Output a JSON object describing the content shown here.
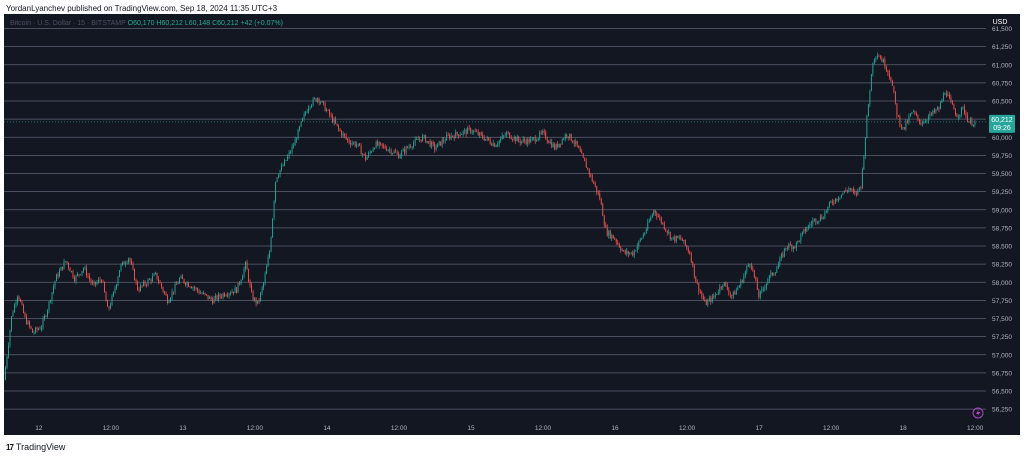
{
  "header": {
    "published_text": "YordanLyanchev published on TradingView.com, Sep 18, 2024 11:35 UTC+3"
  },
  "symbol": {
    "name": "Bitcoin · U.S. Dollar · 15 · BITSTAMP",
    "ohlc": "O60,170 H60,212 L60,148 C60,212 +42 (+0.07%)"
  },
  "footer": {
    "brand": "TradingView"
  },
  "colors": {
    "background": "#131722",
    "grid": "#5d6172",
    "up": "#26a69a",
    "down": "#ef5350",
    "price_tag": "#26a69a",
    "text": "#b2b5be"
  },
  "chart_data": {
    "type": "candlestick",
    "currency": "USD",
    "y_ticks": [
      "56,250",
      "56,500",
      "56,750",
      "57,000",
      "57,250",
      "57,500",
      "57,750",
      "58,000",
      "58,250",
      "58,500",
      "58,750",
      "59,000",
      "59,250",
      "59,500",
      "59,750",
      "60,000",
      "60,250",
      "60,500",
      "60,750",
      "61,000",
      "61,250",
      "61,500"
    ],
    "ylim": [
      56100,
      61700
    ],
    "x_ticks": [
      {
        "label": "12",
        "h": 0
      },
      {
        "label": "12:00",
        "h": 12
      },
      {
        "label": "13",
        "h": 24
      },
      {
        "label": "12:00",
        "h": 36
      },
      {
        "label": "14",
        "h": 48
      },
      {
        "label": "12:00",
        "h": 60
      },
      {
        "label": "15",
        "h": 72
      },
      {
        "label": "12:00",
        "h": 84
      },
      {
        "label": "16",
        "h": 96
      },
      {
        "label": "12:00",
        "h": 108
      },
      {
        "label": "17",
        "h": 120
      },
      {
        "label": "12:00",
        "h": 132
      },
      {
        "label": "18",
        "h": 144
      },
      {
        "label": "12:00",
        "h": 156
      }
    ],
    "x_range_hours": [
      -5.8,
      157.8
    ],
    "last_price": "60,212",
    "countdown": "09:26",
    "path_keypoints": [
      [
        -5.8,
        56650
      ],
      [
        -4.5,
        57550
      ],
      [
        -3.5,
        57850
      ],
      [
        -2.3,
        57500
      ],
      [
        -1,
        57300
      ],
      [
        0.5,
        57400
      ],
      [
        1.5,
        57650
      ],
      [
        2.8,
        58050
      ],
      [
        4.5,
        58300
      ],
      [
        6,
        58050
      ],
      [
        7.5,
        58200
      ],
      [
        9,
        57950
      ],
      [
        10.5,
        58050
      ],
      [
        11.5,
        57600
      ],
      [
        12.5,
        57850
      ],
      [
        13.5,
        58200
      ],
      [
        15,
        58350
      ],
      [
        16.5,
        57900
      ],
      [
        18,
        58000
      ],
      [
        19.5,
        58100
      ],
      [
        21.5,
        57750
      ],
      [
        23.5,
        58050
      ],
      [
        25.5,
        57950
      ],
      [
        27,
        57850
      ],
      [
        29,
        57750
      ],
      [
        31,
        57850
      ],
      [
        33,
        57900
      ],
      [
        34.5,
        58250
      ],
      [
        35.5,
        57800
      ],
      [
        36.5,
        57700
      ],
      [
        37.5,
        58000
      ],
      [
        38.5,
        58450
      ],
      [
        39.5,
        59450
      ],
      [
        41,
        59650
      ],
      [
        42.5,
        59900
      ],
      [
        44,
        60250
      ],
      [
        45,
        60450
      ],
      [
        46.5,
        60550
      ],
      [
        48.5,
        60300
      ],
      [
        50,
        60100
      ],
      [
        51.5,
        59950
      ],
      [
        53,
        59900
      ],
      [
        54.5,
        59700
      ],
      [
        56,
        59900
      ],
      [
        58,
        59850
      ],
      [
        60,
        59750
      ],
      [
        62,
        59900
      ],
      [
        64,
        60000
      ],
      [
        66,
        59850
      ],
      [
        68,
        60000
      ],
      [
        70,
        60050
      ],
      [
        72,
        60100
      ],
      [
        74,
        60000
      ],
      [
        76,
        59900
      ],
      [
        78,
        60050
      ],
      [
        80,
        59950
      ],
      [
        82,
        59950
      ],
      [
        84,
        60050
      ],
      [
        86,
        59850
      ],
      [
        88,
        60050
      ],
      [
        89.5,
        59900
      ],
      [
        91.5,
        59550
      ],
      [
        93.5,
        59150
      ],
      [
        94.5,
        58700
      ],
      [
        96,
        58600
      ],
      [
        97.5,
        58400
      ],
      [
        99,
        58400
      ],
      [
        101,
        58700
      ],
      [
        102.5,
        59000
      ],
      [
        104,
        58800
      ],
      [
        105.5,
        58600
      ],
      [
        107,
        58600
      ],
      [
        108.5,
        58400
      ],
      [
        109.5,
        58000
      ],
      [
        111,
        57700
      ],
      [
        112.5,
        57800
      ],
      [
        114,
        58000
      ],
      [
        115.5,
        57800
      ],
      [
        117,
        58000
      ],
      [
        118.5,
        58300
      ],
      [
        120,
        57800
      ],
      [
        121.5,
        58050
      ],
      [
        123,
        58200
      ],
      [
        124.5,
        58500
      ],
      [
        126,
        58500
      ],
      [
        127.5,
        58700
      ],
      [
        129,
        58850
      ],
      [
        130.5,
        58900
      ],
      [
        132,
        59100
      ],
      [
        133.5,
        59200
      ],
      [
        135,
        59300
      ],
      [
        136,
        59200
      ],
      [
        137,
        59350
      ],
      [
        138,
        60300
      ],
      [
        139,
        61100
      ],
      [
        139.8,
        61150
      ],
      [
        141,
        61000
      ],
      [
        142,
        60800
      ],
      [
        143,
        60300
      ],
      [
        144,
        60100
      ],
      [
        145.5,
        60350
      ],
      [
        147,
        60200
      ],
      [
        148.5,
        60300
      ],
      [
        150,
        60400
      ],
      [
        151,
        60650
      ],
      [
        152,
        60450
      ],
      [
        153,
        60300
      ],
      [
        154,
        60400
      ],
      [
        155,
        60200
      ],
      [
        156,
        60212
      ]
    ]
  }
}
